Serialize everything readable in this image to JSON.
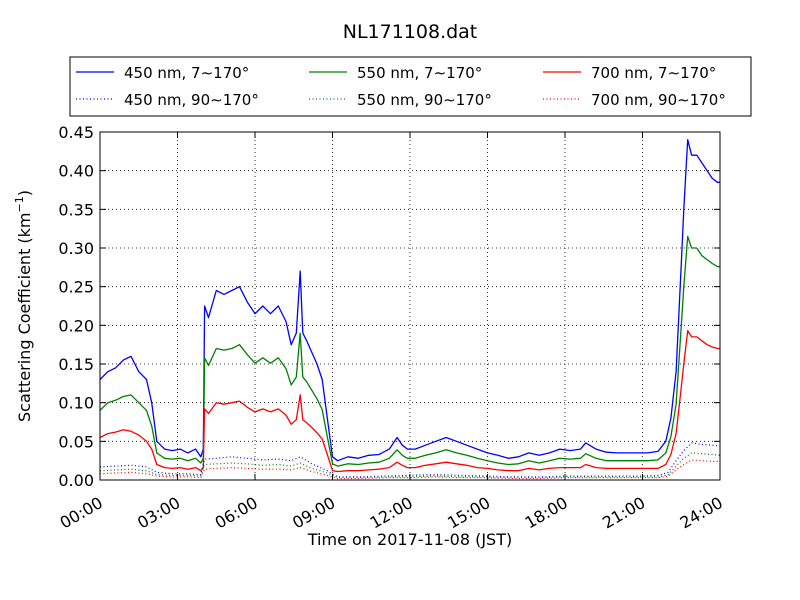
{
  "chart_data": {
    "type": "line",
    "title": "NL171108.dat",
    "xlabel": "Time on 2017-11-08 (JST)",
    "ylabel": "Scattering Coefficient (km",
    "ylabel_sup": "−1",
    "ylabel_close": ")",
    "xlim": [
      0,
      24
    ],
    "ylim": [
      0,
      0.45
    ],
    "x_ticks": [
      0,
      3,
      6,
      9,
      12,
      15,
      18,
      21,
      24
    ],
    "x_tick_labels": [
      "00:00",
      "03:00",
      "06:00",
      "09:00",
      "12:00",
      "15:00",
      "18:00",
      "21:00",
      "24:00"
    ],
    "y_ticks": [
      0,
      0.05,
      0.1,
      0.15,
      0.2,
      0.25,
      0.3,
      0.35,
      0.4,
      0.45
    ],
    "y_tick_labels": [
      "0.00",
      "0.05",
      "0.10",
      "0.15",
      "0.20",
      "0.25",
      "0.30",
      "0.35",
      "0.40",
      "0.45"
    ],
    "grid": true,
    "legend_position": "top",
    "series": [
      {
        "name": "450 nm, 7∼170°",
        "color": "#0000ff",
        "style": "solid",
        "x": [
          0,
          0.3,
          0.6,
          0.9,
          1.2,
          1.5,
          1.8,
          2.0,
          2.2,
          2.5,
          2.8,
          3.1,
          3.4,
          3.7,
          3.9,
          4.0,
          4.05,
          4.2,
          4.5,
          4.8,
          5.1,
          5.4,
          5.7,
          6.0,
          6.3,
          6.6,
          6.9,
          7.2,
          7.4,
          7.6,
          7.75,
          7.85,
          8.0,
          8.2,
          8.4,
          8.6,
          8.8,
          9.0,
          9.2,
          9.6,
          10.0,
          10.4,
          10.8,
          11.2,
          11.5,
          11.7,
          11.9,
          12.2,
          12.6,
          13.0,
          13.4,
          13.8,
          14.2,
          14.6,
          15.0,
          15.4,
          15.8,
          16.2,
          16.6,
          17.0,
          17.4,
          17.8,
          18.2,
          18.6,
          18.8,
          19.2,
          19.6,
          20.0,
          20.4,
          20.8,
          21.2,
          21.6,
          21.9,
          22.1,
          22.3,
          22.5,
          22.6,
          22.75,
          22.9,
          23.1,
          23.3,
          23.5,
          23.7,
          23.9,
          24.0
        ],
        "y": [
          0.13,
          0.14,
          0.145,
          0.155,
          0.16,
          0.14,
          0.13,
          0.1,
          0.05,
          0.04,
          0.038,
          0.04,
          0.035,
          0.04,
          0.03,
          0.04,
          0.225,
          0.21,
          0.245,
          0.24,
          0.245,
          0.25,
          0.23,
          0.215,
          0.225,
          0.215,
          0.225,
          0.205,
          0.175,
          0.19,
          0.27,
          0.19,
          0.18,
          0.165,
          0.15,
          0.13,
          0.08,
          0.03,
          0.025,
          0.03,
          0.028,
          0.032,
          0.033,
          0.04,
          0.055,
          0.045,
          0.04,
          0.04,
          0.045,
          0.05,
          0.055,
          0.05,
          0.045,
          0.04,
          0.035,
          0.032,
          0.028,
          0.03,
          0.035,
          0.032,
          0.035,
          0.04,
          0.038,
          0.04,
          0.048,
          0.04,
          0.036,
          0.035,
          0.035,
          0.035,
          0.035,
          0.037,
          0.05,
          0.08,
          0.14,
          0.28,
          0.35,
          0.44,
          0.42,
          0.42,
          0.41,
          0.4,
          0.39,
          0.385,
          0.385
        ]
      },
      {
        "name": "550 nm, 7∼170°",
        "color": "#008000",
        "style": "solid",
        "x": [
          0,
          0.3,
          0.6,
          0.9,
          1.2,
          1.5,
          1.8,
          2.0,
          2.2,
          2.5,
          2.8,
          3.1,
          3.4,
          3.7,
          3.9,
          4.0,
          4.05,
          4.2,
          4.5,
          4.8,
          5.1,
          5.4,
          5.7,
          6.0,
          6.3,
          6.6,
          6.9,
          7.2,
          7.4,
          7.6,
          7.75,
          7.85,
          8.0,
          8.2,
          8.4,
          8.6,
          8.8,
          9.0,
          9.2,
          9.6,
          10.0,
          10.4,
          10.8,
          11.2,
          11.5,
          11.7,
          11.9,
          12.2,
          12.6,
          13.0,
          13.4,
          13.8,
          14.2,
          14.6,
          15.0,
          15.4,
          15.8,
          16.2,
          16.6,
          17.0,
          17.4,
          17.8,
          18.2,
          18.6,
          18.8,
          19.2,
          19.6,
          20.0,
          20.4,
          20.8,
          21.2,
          21.6,
          21.9,
          22.1,
          22.3,
          22.5,
          22.6,
          22.75,
          22.9,
          23.1,
          23.3,
          23.5,
          23.7,
          23.9,
          24.0
        ],
        "y": [
          0.09,
          0.1,
          0.103,
          0.108,
          0.11,
          0.1,
          0.09,
          0.07,
          0.035,
          0.028,
          0.027,
          0.028,
          0.025,
          0.028,
          0.022,
          0.028,
          0.158,
          0.148,
          0.17,
          0.168,
          0.17,
          0.175,
          0.162,
          0.151,
          0.158,
          0.151,
          0.158,
          0.144,
          0.123,
          0.133,
          0.19,
          0.133,
          0.127,
          0.116,
          0.105,
          0.091,
          0.056,
          0.021,
          0.018,
          0.021,
          0.02,
          0.022,
          0.023,
          0.028,
          0.039,
          0.032,
          0.028,
          0.028,
          0.032,
          0.035,
          0.039,
          0.035,
          0.032,
          0.028,
          0.025,
          0.022,
          0.02,
          0.021,
          0.025,
          0.022,
          0.025,
          0.028,
          0.027,
          0.028,
          0.034,
          0.028,
          0.025,
          0.025,
          0.025,
          0.025,
          0.025,
          0.026,
          0.035,
          0.056,
          0.098,
          0.2,
          0.25,
          0.315,
          0.3,
          0.3,
          0.29,
          0.285,
          0.28,
          0.276,
          0.276
        ]
      },
      {
        "name": "700 nm, 7∼170°",
        "color": "#ff0000",
        "style": "solid",
        "x": [
          0,
          0.3,
          0.6,
          0.9,
          1.2,
          1.5,
          1.8,
          2.0,
          2.2,
          2.5,
          2.8,
          3.1,
          3.4,
          3.7,
          3.9,
          4.0,
          4.05,
          4.2,
          4.5,
          4.8,
          5.1,
          5.4,
          5.7,
          6.0,
          6.3,
          6.6,
          6.9,
          7.2,
          7.4,
          7.6,
          7.75,
          7.85,
          8.0,
          8.2,
          8.4,
          8.6,
          8.8,
          9.0,
          9.2,
          9.6,
          10.0,
          10.4,
          10.8,
          11.2,
          11.5,
          11.7,
          11.9,
          12.2,
          12.6,
          13.0,
          13.4,
          13.8,
          14.2,
          14.6,
          15.0,
          15.4,
          15.8,
          16.2,
          16.6,
          17.0,
          17.4,
          17.8,
          18.2,
          18.6,
          18.8,
          19.2,
          19.6,
          20.0,
          20.4,
          20.8,
          21.2,
          21.6,
          21.9,
          22.1,
          22.3,
          22.5,
          22.6,
          22.75,
          22.9,
          23.1,
          23.3,
          23.5,
          23.7,
          23.9,
          24.0
        ],
        "y": [
          0.055,
          0.06,
          0.062,
          0.065,
          0.063,
          0.058,
          0.05,
          0.04,
          0.02,
          0.016,
          0.015,
          0.016,
          0.014,
          0.016,
          0.012,
          0.016,
          0.092,
          0.086,
          0.1,
          0.098,
          0.1,
          0.102,
          0.094,
          0.088,
          0.092,
          0.088,
          0.092,
          0.084,
          0.072,
          0.078,
          0.11,
          0.078,
          0.074,
          0.068,
          0.061,
          0.053,
          0.033,
          0.012,
          0.011,
          0.012,
          0.012,
          0.013,
          0.014,
          0.016,
          0.023,
          0.019,
          0.016,
          0.016,
          0.019,
          0.021,
          0.023,
          0.021,
          0.019,
          0.016,
          0.015,
          0.013,
          0.012,
          0.012,
          0.015,
          0.013,
          0.015,
          0.016,
          0.016,
          0.016,
          0.02,
          0.016,
          0.015,
          0.015,
          0.015,
          0.015,
          0.015,
          0.015,
          0.02,
          0.033,
          0.06,
          0.12,
          0.15,
          0.193,
          0.185,
          0.185,
          0.18,
          0.175,
          0.172,
          0.17,
          0.17
        ]
      },
      {
        "name": "450 nm, 90∼170°",
        "color": "#0000ff",
        "style": "dotted",
        "x": [
          0,
          0.6,
          1.2,
          1.8,
          2.2,
          2.8,
          3.4,
          3.9,
          4.05,
          4.5,
          5.1,
          5.7,
          6.3,
          6.9,
          7.4,
          7.75,
          8.2,
          8.8,
          9.2,
          10,
          11,
          12,
          13,
          14,
          15,
          16,
          17,
          18,
          19,
          20,
          21,
          21.6,
          22,
          22.3,
          22.6,
          22.9,
          23.3,
          23.7,
          24.0
        ],
        "y": [
          0.017,
          0.018,
          0.019,
          0.017,
          0.01,
          0.008,
          0.008,
          0.007,
          0.027,
          0.028,
          0.03,
          0.028,
          0.026,
          0.027,
          0.025,
          0.03,
          0.021,
          0.012,
          0.004,
          0.004,
          0.005,
          0.006,
          0.007,
          0.006,
          0.005,
          0.004,
          0.004,
          0.005,
          0.005,
          0.005,
          0.005,
          0.006,
          0.01,
          0.025,
          0.038,
          0.048,
          0.046,
          0.045,
          0.044
        ]
      },
      {
        "name": "550 nm, 90∼170°",
        "color": "#008000",
        "style": "dotted",
        "x": [
          0,
          0.6,
          1.2,
          1.8,
          2.2,
          2.8,
          3.4,
          3.9,
          4.05,
          4.5,
          5.1,
          5.7,
          6.3,
          6.9,
          7.4,
          7.75,
          8.2,
          8.8,
          9.2,
          10,
          11,
          12,
          13,
          14,
          15,
          16,
          17,
          18,
          19,
          20,
          21,
          21.6,
          22,
          22.3,
          22.6,
          22.9,
          23.3,
          23.7,
          24.0
        ],
        "y": [
          0.012,
          0.013,
          0.014,
          0.012,
          0.007,
          0.006,
          0.006,
          0.005,
          0.02,
          0.021,
          0.022,
          0.021,
          0.019,
          0.02,
          0.018,
          0.022,
          0.015,
          0.009,
          0.003,
          0.003,
          0.004,
          0.004,
          0.005,
          0.004,
          0.004,
          0.003,
          0.003,
          0.004,
          0.004,
          0.004,
          0.004,
          0.004,
          0.007,
          0.018,
          0.028,
          0.035,
          0.034,
          0.033,
          0.032
        ]
      },
      {
        "name": "700 nm, 90∼170°",
        "color": "#ff0000",
        "style": "dotted",
        "x": [
          0,
          0.6,
          1.2,
          1.8,
          2.2,
          2.8,
          3.4,
          3.9,
          4.05,
          4.5,
          5.1,
          5.7,
          6.3,
          6.9,
          7.4,
          7.75,
          8.2,
          8.8,
          9.2,
          10,
          11,
          12,
          13,
          14,
          15,
          16,
          17,
          18,
          19,
          20,
          21,
          21.6,
          22,
          22.3,
          22.6,
          22.9,
          23.3,
          23.7,
          24.0
        ],
        "y": [
          0.008,
          0.009,
          0.01,
          0.008,
          0.005,
          0.004,
          0.004,
          0.003,
          0.014,
          0.015,
          0.016,
          0.015,
          0.014,
          0.014,
          0.013,
          0.016,
          0.011,
          0.006,
          0.002,
          0.002,
          0.003,
          0.003,
          0.004,
          0.003,
          0.003,
          0.002,
          0.002,
          0.003,
          0.003,
          0.003,
          0.003,
          0.003,
          0.005,
          0.013,
          0.02,
          0.026,
          0.025,
          0.024,
          0.024
        ]
      }
    ]
  }
}
